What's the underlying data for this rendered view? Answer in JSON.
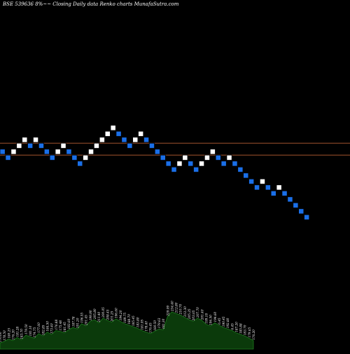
{
  "header": {
    "title": "BSE 539636  8%~~  Closing Daily data  Renko  charts MunafaSutra.com"
  },
  "colors": {
    "background": "#000000",
    "up_brick": "#ffffff",
    "down_brick": "#1a6fe8",
    "brick_outline": "#000000",
    "reference_line": "#a0522d",
    "volume_fill": "#0b3a0b",
    "volume_stroke": "#1e7a1e",
    "volume_label": "#ffffff"
  },
  "chart_data": {
    "type": "renko",
    "reference_levels": [
      2,
      0
    ],
    "bricks": [
      {
        "level": 0,
        "dir": "down"
      },
      {
        "level": -1,
        "dir": "down"
      },
      {
        "level": 0,
        "dir": "up"
      },
      {
        "level": 1,
        "dir": "up"
      },
      {
        "level": 2,
        "dir": "up"
      },
      {
        "level": 1,
        "dir": "down"
      },
      {
        "level": 2,
        "dir": "up"
      },
      {
        "level": 1,
        "dir": "down"
      },
      {
        "level": 0,
        "dir": "down"
      },
      {
        "level": -1,
        "dir": "down"
      },
      {
        "level": 0,
        "dir": "up"
      },
      {
        "level": 1,
        "dir": "up"
      },
      {
        "level": 0,
        "dir": "down"
      },
      {
        "level": -1,
        "dir": "down"
      },
      {
        "level": -2,
        "dir": "down"
      },
      {
        "level": -1,
        "dir": "up"
      },
      {
        "level": 0,
        "dir": "up"
      },
      {
        "level": 1,
        "dir": "up"
      },
      {
        "level": 2,
        "dir": "up"
      },
      {
        "level": 3,
        "dir": "up"
      },
      {
        "level": 4,
        "dir": "up"
      },
      {
        "level": 3,
        "dir": "down"
      },
      {
        "level": 2,
        "dir": "down"
      },
      {
        "level": 1,
        "dir": "down"
      },
      {
        "level": 2,
        "dir": "up"
      },
      {
        "level": 3,
        "dir": "up"
      },
      {
        "level": 2,
        "dir": "down"
      },
      {
        "level": 1,
        "dir": "down"
      },
      {
        "level": 0,
        "dir": "down"
      },
      {
        "level": -1,
        "dir": "down"
      },
      {
        "level": -2,
        "dir": "down"
      },
      {
        "level": -3,
        "dir": "down"
      },
      {
        "level": -2,
        "dir": "up"
      },
      {
        "level": -1,
        "dir": "up"
      },
      {
        "level": -2,
        "dir": "down"
      },
      {
        "level": -3,
        "dir": "down"
      },
      {
        "level": -2,
        "dir": "up"
      },
      {
        "level": -1,
        "dir": "up"
      },
      {
        "level": 0,
        "dir": "up"
      },
      {
        "level": -1,
        "dir": "down"
      },
      {
        "level": -2,
        "dir": "down"
      },
      {
        "level": -1,
        "dir": "up"
      },
      {
        "level": -2,
        "dir": "down"
      },
      {
        "level": -3,
        "dir": "down"
      },
      {
        "level": -4,
        "dir": "down"
      },
      {
        "level": -5,
        "dir": "down"
      },
      {
        "level": -6,
        "dir": "down"
      },
      {
        "level": -5,
        "dir": "up"
      },
      {
        "level": -6,
        "dir": "down"
      },
      {
        "level": -7,
        "dir": "down"
      },
      {
        "level": -6,
        "dir": "up"
      },
      {
        "level": -7,
        "dir": "down"
      },
      {
        "level": -8,
        "dir": "down"
      },
      {
        "level": -9,
        "dir": "down"
      },
      {
        "level": -10,
        "dir": "down"
      },
      {
        "level": -11,
        "dir": "down"
      }
    ],
    "volume": {
      "values": [
        8,
        10,
        13,
        11,
        15,
        12,
        18,
        16,
        14,
        20,
        17,
        22,
        19,
        24,
        23,
        21,
        25,
        28,
        26,
        33,
        30,
        36,
        38,
        34,
        40,
        37,
        35,
        39,
        36,
        33,
        31,
        29,
        27,
        24,
        22,
        20,
        23,
        26,
        25,
        42,
        48,
        46,
        44,
        41,
        38,
        36,
        40,
        37,
        32,
        30,
        34,
        31,
        28,
        26,
        24,
        21,
        19,
        17,
        14,
        11
      ],
      "labels": [
        "176.60",
        "178.50",
        "180.25",
        "176.20",
        "181.28",
        "183.70",
        "179.50",
        "181.10",
        "174.75",
        "177.60",
        "182.85",
        "184.50",
        "173.40",
        "176.88",
        "175.48",
        "181.45",
        "183.60",
        "187.78",
        "191.20",
        "196.55",
        "201.45",
        "199.90",
        "205.80",
        "211.40",
        "200.05",
        "208.45",
        "201.25",
        "196.60",
        "194.20",
        "189.75",
        "188.70",
        "185.45",
        "183.80",
        "181.95",
        "178.40",
        "176.45",
        "180.50",
        "179.63",
        "181.30",
        "229.09",
        "234.40",
        "212.80",
        "210.70",
        "212.30",
        "205.25",
        "203.65",
        "207.70",
        "201.40",
        "199.18",
        "196.50",
        "194.60",
        "6.45",
        "190.45",
        "192.80",
        "6.45",
        "187.20",
        "185.88",
        "183.70",
        "179.65",
        "176.20"
      ]
    }
  }
}
